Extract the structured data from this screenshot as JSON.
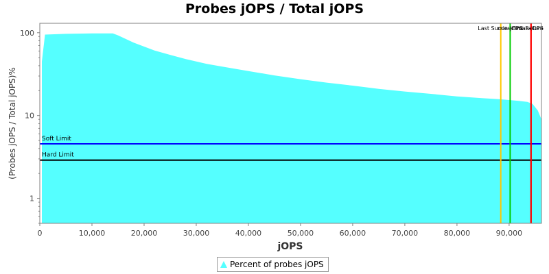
{
  "chart_data": {
    "type": "area",
    "title": "Probes jOPS / Total jOPS",
    "xlabel": "jOPS",
    "ylabel": "(Probes jOPS / Total jOPS)%",
    "y_scale": "log",
    "xlim": [
      0,
      96200
    ],
    "ylim": [
      0.5,
      130
    ],
    "x_ticks": [
      0,
      10000,
      20000,
      30000,
      40000,
      50000,
      60000,
      70000,
      80000,
      90000
    ],
    "x_tick_labels": [
      "0",
      "10,000",
      "20,000",
      "30,000",
      "40,000",
      "50,000",
      "60,000",
      "70,000",
      "80,000",
      "90,000"
    ],
    "y_ticks": [
      1,
      10,
      100
    ],
    "y_tick_labels": [
      "1",
      "10",
      "100"
    ],
    "grid": false,
    "legend_position": "bottom",
    "series": [
      {
        "name": "Percent of probes jOPS",
        "color": "#55ffff",
        "x": [
          400,
          1000,
          5000,
          10000,
          14000,
          15000,
          18000,
          20000,
          22000,
          25000,
          28000,
          30000,
          32000,
          35000,
          40000,
          45000,
          50000,
          55000,
          60000,
          65000,
          70000,
          75000,
          80000,
          85000,
          88000,
          90000,
          92000,
          93500,
          94500,
          95500,
          96200
        ],
        "y": [
          45,
          95,
          97,
          98,
          98,
          93,
          76,
          68,
          61,
          54,
          48,
          45,
          42,
          39,
          34.5,
          30.5,
          27.5,
          25,
          23,
          21,
          19.5,
          18.3,
          17,
          16.2,
          15.8,
          15.4,
          15,
          14.6,
          13.8,
          11.5,
          9
        ]
      }
    ],
    "reference_lines": [
      {
        "orientation": "horizontal",
        "y": 4.55,
        "label": "Soft Limit",
        "color": "#0000ff"
      },
      {
        "orientation": "horizontal",
        "y": 2.9,
        "label": "Hard Limit",
        "color": "#000000"
      },
      {
        "orientation": "vertical",
        "x": 88400,
        "label": "Last Success",
        "color": "#ffc800"
      },
      {
        "orientation": "vertical",
        "x": 90200,
        "label": "min-jOPS",
        "color": "#00cc00"
      },
      {
        "orientation": "vertical",
        "x": 94200,
        "label": "max-jOPS",
        "color": "#ff0000"
      },
      {
        "orientation": "vertical",
        "x": 94200,
        "label": "First Failure",
        "color": "#ff0000"
      }
    ]
  }
}
